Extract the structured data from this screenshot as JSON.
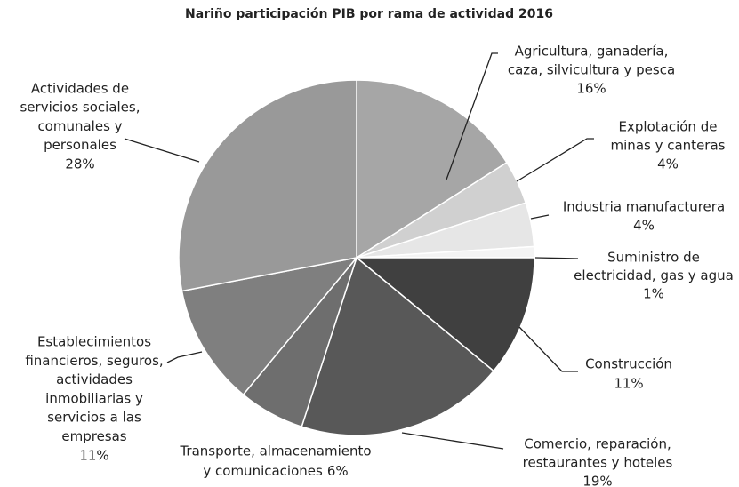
{
  "chart_data": {
    "type": "pie",
    "title": "Nariño participación PIB por rama de actividad 2016",
    "categories": [
      [
        "Agricultura, ganadería,",
        "caza, silvicultura y pesca"
      ],
      [
        "Explotación de",
        "minas y canteras"
      ],
      [
        "Industria manufacturera"
      ],
      [
        "Suministro de",
        "electricidad, gas y agua"
      ],
      [
        "Construcción"
      ],
      [
        "Comercio, reparación,",
        "restaurantes y hoteles"
      ],
      [
        "Transporte, almacenamiento",
        "y comunicaciones"
      ],
      [
        "Establecimientos",
        "financieros, seguros,",
        "actividades",
        "inmobiliarias y",
        "servicios a las",
        "empresas"
      ],
      [
        "Actividades de",
        "servicios sociales,",
        "comunales y",
        "personales"
      ]
    ],
    "values": [
      16,
      4,
      4,
      1,
      11,
      19,
      6,
      11,
      28
    ],
    "value_labels": [
      "16%",
      "4%",
      "4%",
      "1%",
      "11%",
      "19%",
      "6%",
      "11%",
      "28%"
    ],
    "colors": [
      "#a6a6a6",
      "#d0d0d0",
      "#e6e6e6",
      "#f4f4f4",
      "#404040",
      "#585858",
      "#6e6e6e",
      "#7f7f7f",
      "#999999"
    ]
  }
}
